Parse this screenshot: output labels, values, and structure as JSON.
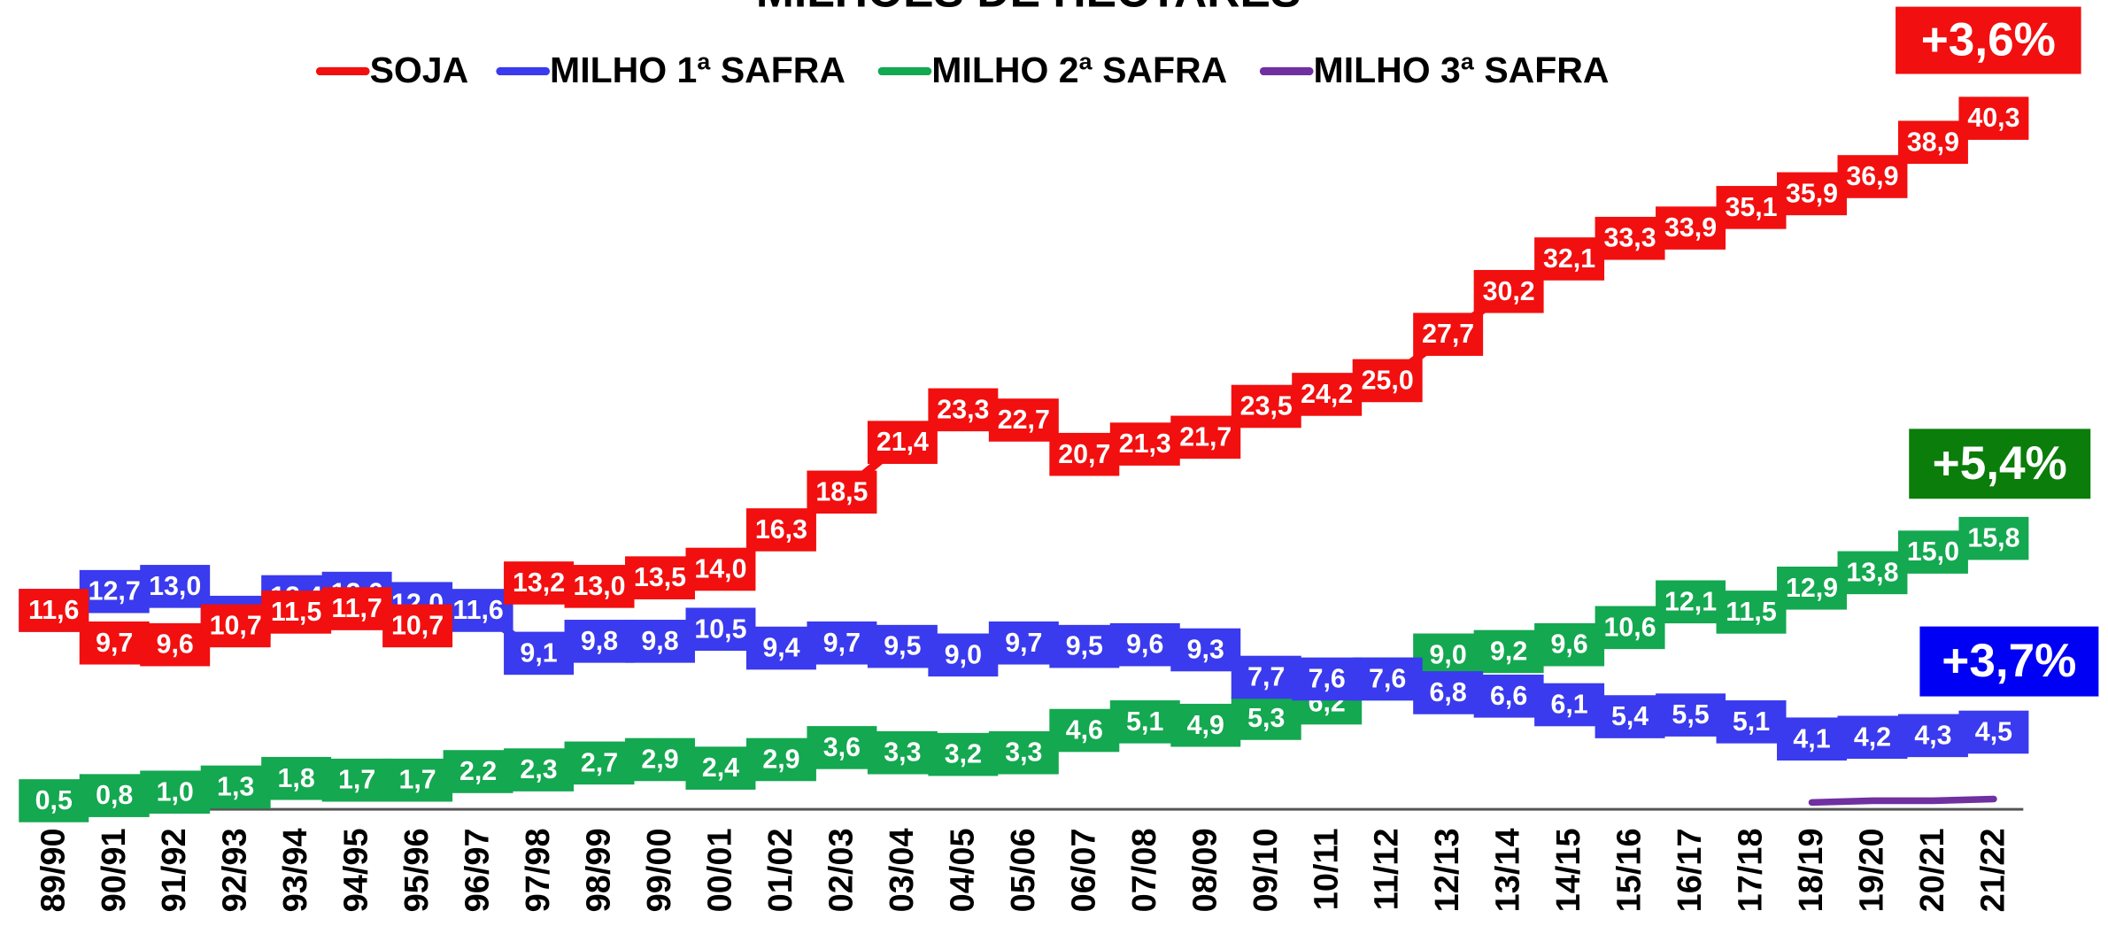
{
  "chart_data": {
    "type": "line",
    "title": "MILHÕES DE HECTARES",
    "categories": [
      "89/90",
      "90/91",
      "91/92",
      "92/93",
      "93/94",
      "94/95",
      "95/96",
      "96/97",
      "97/98",
      "98/99",
      "99/00",
      "00/01",
      "01/02",
      "02/03",
      "03/04",
      "04/05",
      "05/06",
      "06/07",
      "07/08",
      "08/09",
      "09/10",
      "10/11",
      "11/12",
      "12/13",
      "13/14",
      "14/15",
      "15/16",
      "16/17",
      "17/18",
      "18/19",
      "19/20",
      "20/21",
      "21/22"
    ],
    "ylim": [
      0,
      47.2
    ],
    "series": [
      {
        "name": "SOJA",
        "color": "#f20f0f",
        "values": [
          11.6,
          9.7,
          9.6,
          10.7,
          11.5,
          11.7,
          10.7,
          11.4,
          13.2,
          13.0,
          13.5,
          14.0,
          16.3,
          18.5,
          21.4,
          23.3,
          22.7,
          20.7,
          21.3,
          21.7,
          23.5,
          24.2,
          25.0,
          27.7,
          30.2,
          32.1,
          33.3,
          33.9,
          35.1,
          35.9,
          36.9,
          38.9,
          40.3
        ],
        "value_labels": [
          "11,6",
          "9,7",
          "9,6",
          "10,7",
          "11,5",
          "11,7",
          "10,7",
          null,
          "13,2",
          "13,0",
          "13,5",
          "14,0",
          "16,3",
          "18,5",
          "21,4",
          "23,3",
          "22,7",
          "20,7",
          "21,3",
          "21,7",
          "23,5",
          "24,2",
          "25,0",
          "27,7",
          "30,2",
          "32,1",
          "33,3",
          "33,9",
          "35,1",
          "35,9",
          "36,9",
          "38,9",
          "40,3"
        ]
      },
      {
        "name": "MILHO 1ª SAFRA",
        "color": "#3a3aee",
        "values": [
          11.6,
          12.7,
          13.0,
          11.2,
          12.4,
          12.6,
          12.0,
          11.6,
          9.1,
          9.8,
          9.8,
          10.5,
          9.4,
          9.7,
          9.5,
          9.0,
          9.7,
          9.5,
          9.6,
          9.3,
          7.7,
          7.6,
          7.6,
          6.8,
          6.6,
          6.1,
          5.4,
          5.5,
          5.1,
          4.1,
          4.2,
          4.3,
          4.5
        ],
        "value_labels": [
          "11,6",
          "12,7",
          "13,0",
          "11,2",
          "12,4",
          "12,6",
          "12,0",
          "11,6",
          "9,1",
          "9,8",
          "9,8",
          "10,5",
          "9,4",
          "9,7",
          "9,5",
          "9,0",
          "9,7",
          "9,5",
          "9,6",
          "9,3",
          "7,7",
          "7,6",
          "7,6",
          "6,8",
          "6,6",
          "6,1",
          "5,4",
          "5,5",
          "5,1",
          "4,1",
          "4,2",
          "4,3",
          "4,5"
        ]
      },
      {
        "name": "MILHO 2ª SAFRA",
        "color": "#14a850",
        "values": [
          0.5,
          0.8,
          1.0,
          1.3,
          1.8,
          1.7,
          1.7,
          2.2,
          2.3,
          2.7,
          2.9,
          2.4,
          2.9,
          3.6,
          3.3,
          3.2,
          3.3,
          4.6,
          5.1,
          4.9,
          5.3,
          6.2,
          7.6,
          9.0,
          9.2,
          9.6,
          10.6,
          12.1,
          11.5,
          12.9,
          13.8,
          15.0,
          15.8
        ],
        "value_labels": [
          "0,5",
          "0,8",
          "1,0",
          "1,3",
          "1,8",
          "1,7",
          "1,7",
          "2,2",
          "2,3",
          "2,7",
          "2,9",
          "2,4",
          "2,9",
          "3,6",
          "3,3",
          "3,2",
          "3,3",
          "4,6",
          "5,1",
          "4,9",
          "5,3",
          "6,2",
          "7,6",
          "9,0",
          "9,2",
          "9,6",
          "10,6",
          "12,1",
          "11,5",
          "12,9",
          "13,8",
          "15,0",
          "15,8"
        ]
      },
      {
        "name": "MILHO 3ª SAFRA",
        "color": "#7030a0",
        "values": [
          null,
          null,
          null,
          null,
          null,
          null,
          null,
          null,
          null,
          null,
          null,
          null,
          null,
          null,
          null,
          null,
          null,
          null,
          null,
          null,
          null,
          null,
          null,
          null,
          null,
          null,
          null,
          null,
          null,
          0.4,
          0.5,
          0.5,
          0.6
        ]
      }
    ],
    "annotations": [
      {
        "text": "+3,6%",
        "color": "#f20f0f"
      },
      {
        "text": "+5,4%",
        "color": "#0a7d0a"
      },
      {
        "text": "+3,7%",
        "color": "#0000f5"
      }
    ]
  }
}
